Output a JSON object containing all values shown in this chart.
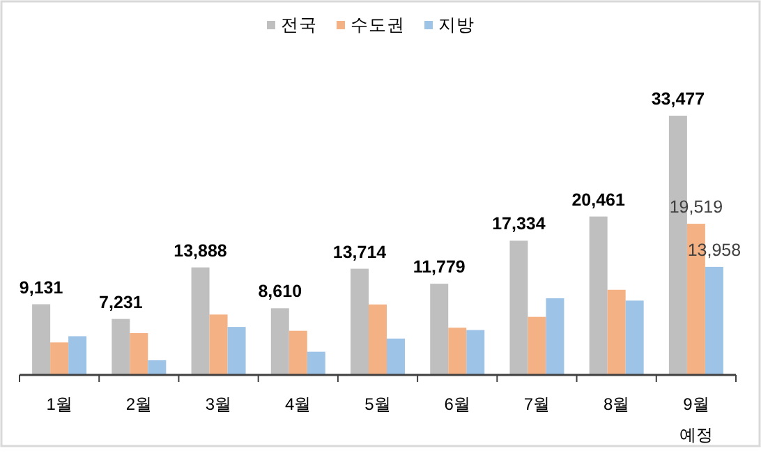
{
  "chart_data": {
    "type": "bar",
    "categories": [
      "1월",
      "2월",
      "3월",
      "4월",
      "5월",
      "6월",
      "7월",
      "8월",
      "9월\n예정"
    ],
    "series": [
      {
        "name": "전국",
        "color": "#bfbfbf",
        "values": [
          9131,
          7231,
          13888,
          8610,
          13714,
          11779,
          17334,
          20461,
          33477
        ],
        "value_labels": [
          "9,131",
          "7,231",
          "13,888",
          "8,610",
          "13,714",
          "11,779",
          "17,334",
          "20,461",
          "33,477"
        ]
      },
      {
        "name": "수도권",
        "color": "#f4b183",
        "values": [
          4200,
          5400,
          7800,
          5700,
          9100,
          6100,
          7500,
          11000,
          19519
        ],
        "value_labels": [
          null,
          null,
          null,
          null,
          null,
          null,
          null,
          null,
          "19,519"
        ]
      },
      {
        "name": "지방",
        "color": "#9dc3e6",
        "values": [
          5000,
          1900,
          6200,
          3000,
          4700,
          5800,
          9900,
          9600,
          13958
        ],
        "value_labels": [
          null,
          null,
          null,
          null,
          null,
          null,
          null,
          null,
          "13,958"
        ]
      }
    ],
    "legend": "top"
  }
}
